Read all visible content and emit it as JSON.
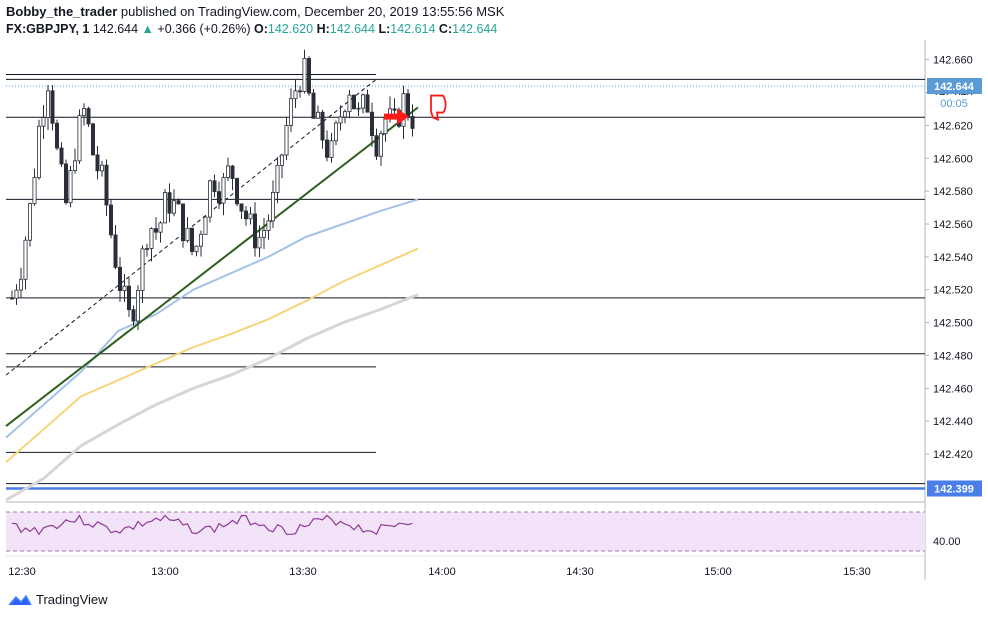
{
  "header": {
    "author": "Bobby_the_trader",
    "published": "published on TradingView.com, December 20, 2019 13:55:56 MSK"
  },
  "quote": {
    "symbol": "FX:GBPJPY, 1",
    "last": "142.644",
    "change": "+0.366 (+0.26%)",
    "o_label": "O:",
    "o": "142.620",
    "h_label": "H:",
    "h": "142.644",
    "l_label": "L:",
    "l": "142.614",
    "c_label": "C:",
    "c": "142.644"
  },
  "price_tags": {
    "last": "142.644",
    "countdown": "00:05",
    "support": "142.399",
    "rsi_level": "40.00"
  },
  "footer": {
    "brand": "TradingView"
  },
  "colors": {
    "up": "#26a69a",
    "candle": "#2a2e39",
    "ma_fast": "#a4c2e8",
    "ma_mid": "#f5d67a",
    "ma_slow": "#d6d6d6",
    "trend": "#2f5e1e",
    "support": "#4a7ee8",
    "rsi_bg": "#f3e3f8",
    "rsi_line": "#8e3a97",
    "arrow": "#ff1a1a"
  },
  "chart_data": {
    "type": "candlestick",
    "symbol": "GBPJPY",
    "timeframe": "1 minute",
    "x_ticks": [
      "12:30",
      "13:00",
      "13:30",
      "14:00",
      "14:30",
      "15:00",
      "15:30"
    ],
    "y_ticks": [
      142.66,
      142.64,
      142.62,
      142.6,
      142.58,
      142.56,
      142.54,
      142.52,
      142.5,
      142.48,
      142.46,
      142.44,
      142.42
    ],
    "ylim": [
      142.392,
      142.672
    ],
    "candles_count": 90,
    "candles_close_path": [
      142.515,
      142.535,
      142.57,
      142.62,
      142.65,
      142.6,
      142.57,
      142.61,
      142.63,
      142.6,
      142.585,
      142.55,
      142.52,
      142.5,
      142.53,
      142.56,
      142.555,
      142.575,
      142.57,
      142.555,
      142.54,
      142.565,
      142.59,
      142.58,
      142.595,
      142.575,
      142.56,
      142.55,
      142.56,
      142.58,
      142.615,
      142.64,
      142.655,
      142.625,
      142.615,
      142.6,
      142.625,
      142.645,
      142.625,
      142.635,
      142.61,
      142.625,
      142.62,
      142.635,
      142.625
    ],
    "horizontal_levels": [
      142.648,
      142.625,
      142.575,
      142.515,
      142.481,
      142.402
    ],
    "short_levels": [
      142.473,
      142.421
    ],
    "support_level": 142.399,
    "last_price": 142.644,
    "series": [
      {
        "name": "",
        "kind": "ma",
        "values": [
          142.43,
          142.45,
          142.47,
          142.495,
          142.505,
          142.52,
          142.53,
          142.54,
          142.552,
          142.56,
          142.568,
          142.575
        ]
      },
      {
        "name": "",
        "kind": "ma",
        "values": [
          142.415,
          142.435,
          142.455,
          142.465,
          142.475,
          142.485,
          142.493,
          142.502,
          142.513,
          142.525,
          142.535,
          142.545
        ]
      },
      {
        "name": "",
        "kind": "ma",
        "values": [
          142.392,
          142.405,
          142.425,
          142.438,
          142.45,
          142.46,
          142.468,
          142.478,
          142.49,
          142.5,
          142.508,
          142.517
        ]
      }
    ],
    "indicator": {
      "name": "RSI",
      "visible_level": "40.00"
    }
  }
}
